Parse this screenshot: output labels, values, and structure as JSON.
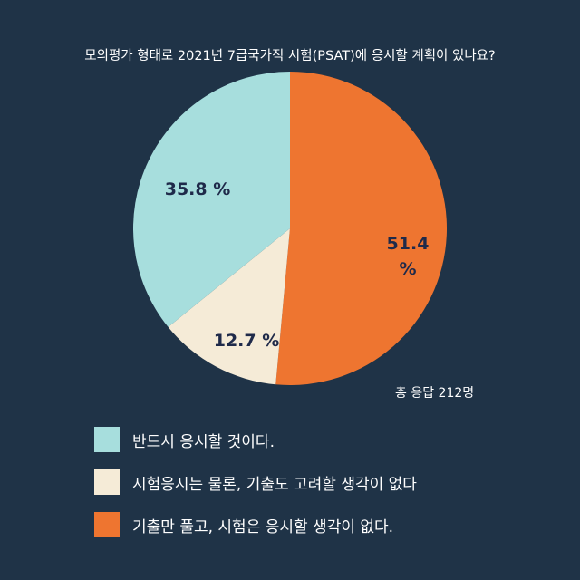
{
  "chart_data": {
    "type": "pie",
    "title": "모의평가 형태로 2021년 7급국가직 시험(PSAT)에 응시할 계획이 있나요?",
    "slices": [
      {
        "name": "반드시 응시할 것이다.",
        "value": 35.8,
        "label_lines": [
          "35.8 %"
        ],
        "color": "#a7dedd"
      },
      {
        "name": "시험응시는 물론, 기출도 고려할 생각이 없다",
        "value": 12.7,
        "label_lines": [
          "12.7 %"
        ],
        "color": "#f5ebd7"
      },
      {
        "name": "기출만 풀고, 시험은 응시할 생각이 없다.",
        "value": 51.4,
        "label_lines": [
          "51.4",
          "%"
        ],
        "color": "#ee7530"
      }
    ],
    "annotation": "총 응답 212명"
  },
  "colors": {
    "background": "#1f3347",
    "label_text": "#1f2a4a"
  }
}
